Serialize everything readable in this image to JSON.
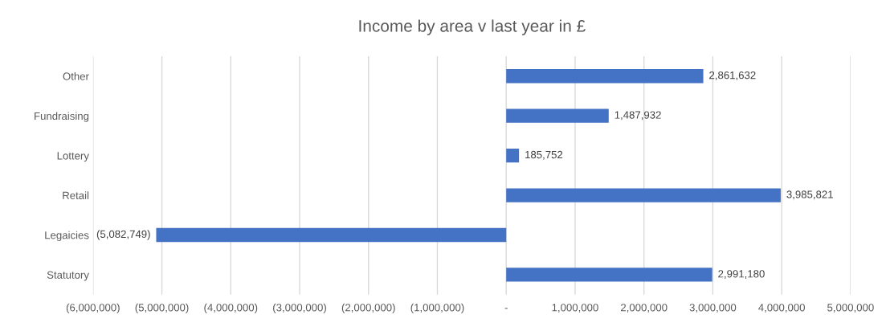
{
  "chart_data": {
    "type": "bar",
    "orientation": "horizontal",
    "title": "Income by area v last year in £",
    "categories": [
      "Other",
      "Fundraising",
      "Lottery",
      "Retail",
      "Legaicies",
      "Statutory"
    ],
    "values": [
      2861632,
      1487932,
      185752,
      3985821,
      -5082749,
      2991180
    ],
    "value_labels": [
      "2,861,632",
      "1,487,932",
      "185,752",
      "3,985,821",
      "(5,082,749)",
      "2,991,180"
    ],
    "color": "#4472c4",
    "xlim": [
      -6000000,
      5000000
    ],
    "xticks": [
      {
        "value": -6000000,
        "label": "(6,000,000)"
      },
      {
        "value": -5000000,
        "label": "(5,000,000)"
      },
      {
        "value": -4000000,
        "label": "(4,000,000)"
      },
      {
        "value": -3000000,
        "label": "(3,000,000)"
      },
      {
        "value": -2000000,
        "label": "(2,000,000)"
      },
      {
        "value": -1000000,
        "label": "(1,000,000)"
      },
      {
        "value": 0,
        "label": "-"
      },
      {
        "value": 1000000,
        "label": "1,000,000"
      },
      {
        "value": 2000000,
        "label": "2,000,000"
      },
      {
        "value": 3000000,
        "label": "3,000,000"
      },
      {
        "value": 4000000,
        "label": "4,000,000"
      },
      {
        "value": 5000000,
        "label": "5,000,000"
      }
    ],
    "grid": "x"
  }
}
